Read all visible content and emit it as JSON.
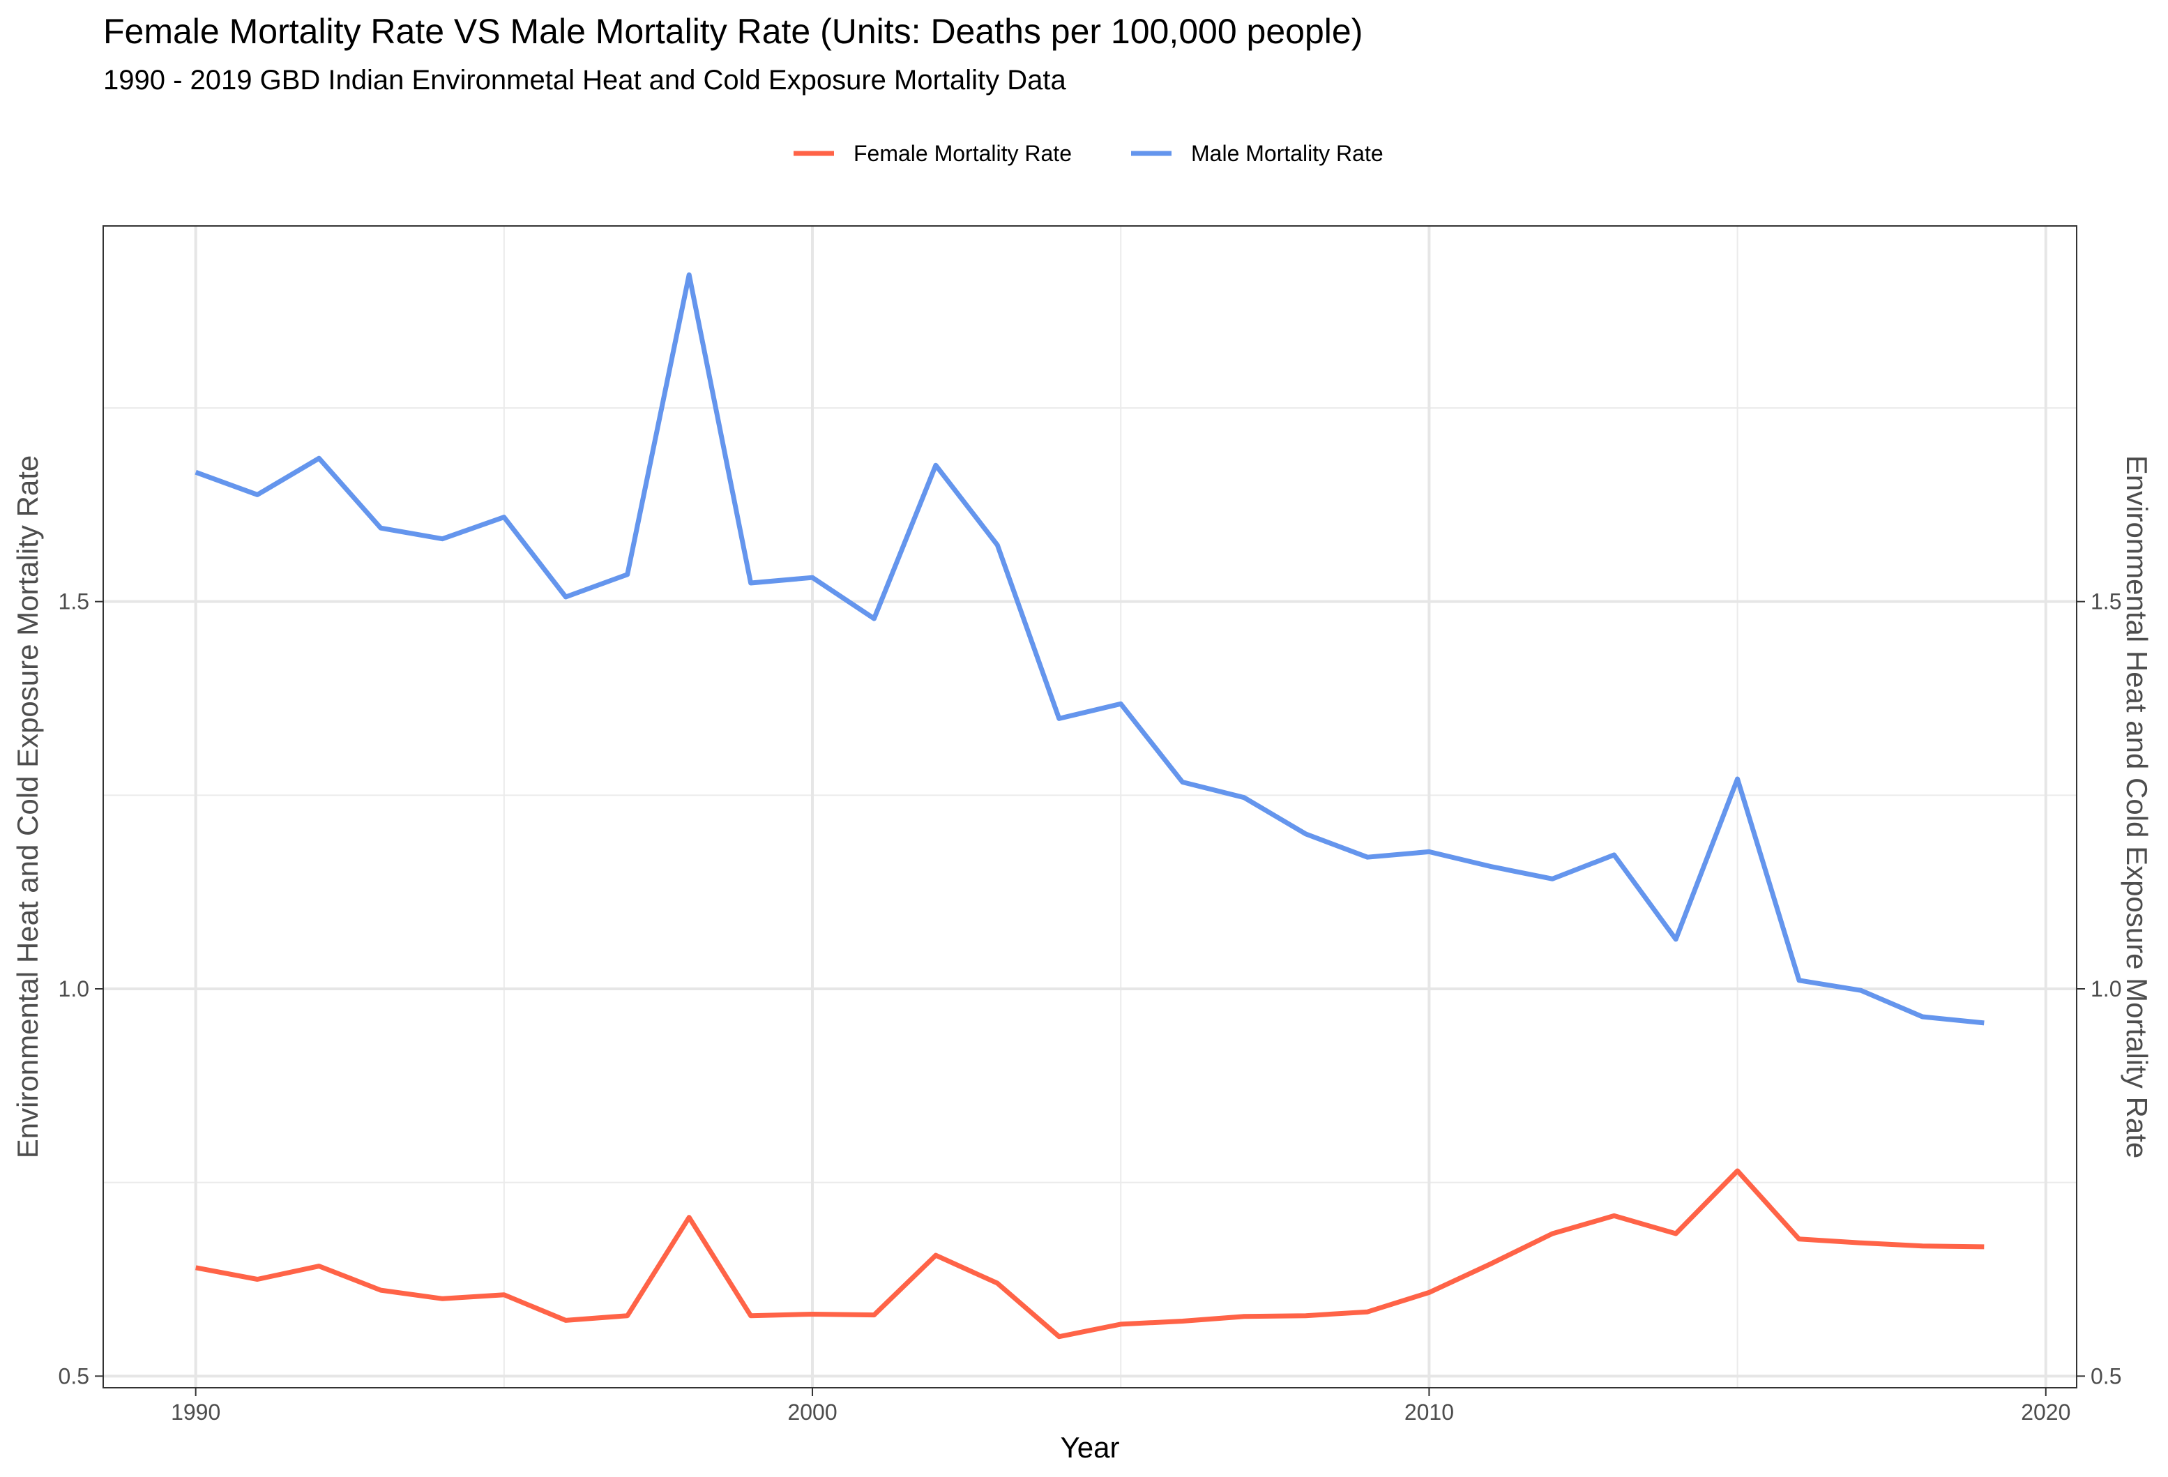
{
  "chart_data": {
    "type": "line",
    "title": "Female Mortality Rate VS Male Mortality Rate (Units: Deaths per 100,000 people)",
    "subtitle": "1990 - 2019 GBD Indian Environmetal Heat and Cold Exposure Mortality Data",
    "xlabel": "Year",
    "ylabel": "Environmental Heat and Cold Exposure Mortality Rate",
    "ylabel_right": "Environmental Heat and Cold Exposure Mortality Rate",
    "xlim": [
      1988.5,
      2020.5
    ],
    "ylim": [
      0.485,
      1.985
    ],
    "x_ticks": [
      1990,
      2000,
      2010,
      2020
    ],
    "x_tick_labels": [
      "1990",
      "2000",
      "2010",
      "2020"
    ],
    "y_ticks": [
      0.5,
      1.0,
      1.5
    ],
    "y_tick_labels": [
      "0.5",
      "1.0",
      "1.5"
    ],
    "y_minor_ticks": [
      0.75,
      1.25,
      1.75
    ],
    "grid": true,
    "legend_position": "top",
    "x": [
      1990,
      1991,
      1992,
      1993,
      1994,
      1995,
      1996,
      1997,
      1998,
      1999,
      2000,
      2001,
      2002,
      2003,
      2004,
      2005,
      2006,
      2007,
      2008,
      2009,
      2010,
      2011,
      2012,
      2013,
      2014,
      2015,
      2016,
      2017,
      2018,
      2019
    ],
    "series": [
      {
        "name": "Female Mortality Rate",
        "color": "#ff6347",
        "values": [
          0.64,
          0.625,
          0.642,
          0.611,
          0.6,
          0.605,
          0.572,
          0.578,
          0.705,
          0.578,
          0.58,
          0.579,
          0.656,
          0.62,
          0.551,
          0.567,
          0.571,
          0.577,
          0.578,
          0.583,
          0.608,
          0.645,
          0.684,
          0.707,
          0.684,
          0.765,
          0.677,
          0.672,
          0.668,
          0.667
        ]
      },
      {
        "name": "Male Mortality Rate",
        "color": "#6495ed",
        "values": [
          1.667,
          1.638,
          1.685,
          1.595,
          1.581,
          1.609,
          1.506,
          1.535,
          1.922,
          1.524,
          1.531,
          1.478,
          1.676,
          1.573,
          1.349,
          1.368,
          1.267,
          1.247,
          1.2,
          1.17,
          1.177,
          1.158,
          1.142,
          1.173,
          1.064,
          1.271,
          1.011,
          0.998,
          0.964,
          0.956
        ]
      }
    ]
  }
}
